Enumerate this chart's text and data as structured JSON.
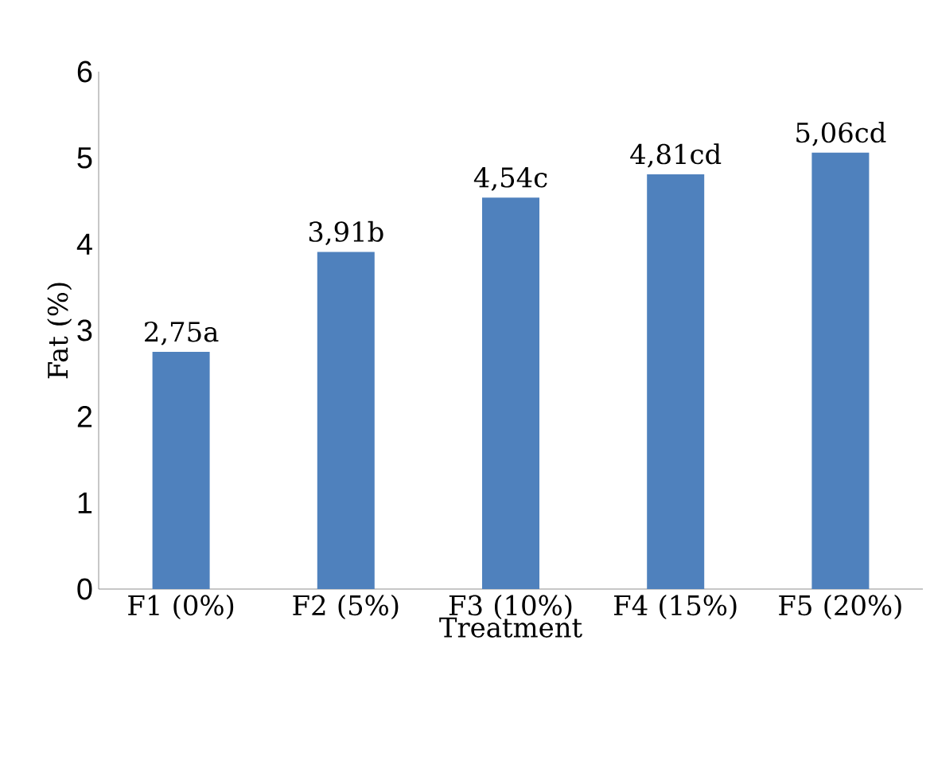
{
  "chart_data": {
    "type": "bar",
    "xlabel": "Treatment",
    "ylabel": "Fat (%)",
    "categories": [
      "F1 (0%)",
      "F2 (5%)",
      "F3 (10%)",
      "F4 (15%)",
      "F5 (20%)"
    ],
    "values": [
      2.75,
      3.91,
      4.54,
      4.81,
      5.06
    ],
    "value_labels": [
      "2,75a",
      "3,91b",
      "4,54c",
      "4,81cd",
      "5,06cd"
    ],
    "color": "#4f81bd",
    "ylim": [
      0,
      6
    ],
    "yticks": [
      0,
      1,
      2,
      3,
      4,
      5,
      6
    ],
    "grid": false
  }
}
